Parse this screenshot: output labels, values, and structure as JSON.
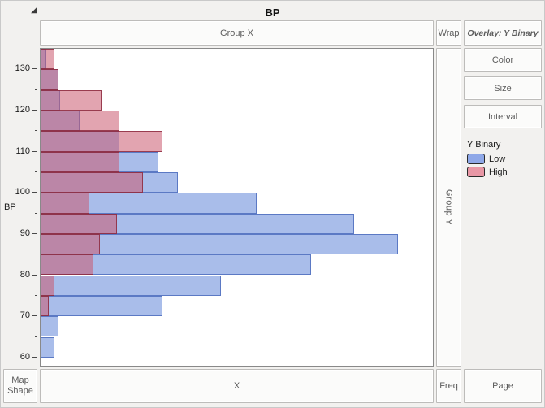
{
  "window": {
    "title_bar": "BP"
  },
  "icons": {
    "disclosure": "◢"
  },
  "zones": {
    "group_x": "Group X",
    "wrap": "Wrap",
    "overlay": "Overlay: Y Binary",
    "group_y": "Group Y",
    "color": "Color",
    "size": "Size",
    "interval": "Interval",
    "map_shape": "Map Shape",
    "x": "X",
    "freq": "Freq",
    "page": "Page"
  },
  "legend": {
    "title": "Y Binary",
    "items": [
      {
        "label": "Low",
        "color": "#8fa8e8"
      },
      {
        "label": "High",
        "color": "#e897a5"
      }
    ]
  },
  "chart_data": {
    "type": "bar",
    "subtype": "histogram",
    "orientation": "horizontal",
    "title": "BP",
    "ylabel": "BP",
    "xlabel": "X",
    "ylim": [
      58,
      135
    ],
    "y_ticks": [
      60,
      70,
      80,
      90,
      100,
      110,
      120,
      130
    ],
    "minor_tick_step": 5,
    "bin_width": 5,
    "bins": [
      60,
      65,
      70,
      75,
      80,
      85,
      90,
      95,
      100,
      105,
      110,
      115,
      120,
      125,
      130
    ],
    "value_unit": "percent-of-x-axis-width (x axis unlabeled in source)",
    "legend_position": "right",
    "grid": false,
    "series": [
      {
        "name": "Low",
        "fill": "#a9bdea",
        "stroke": "#5b79c4",
        "values": [
          3.5,
          4.5,
          31,
          46,
          69,
          91,
          80,
          55,
          35,
          30,
          20,
          10,
          5,
          4.5,
          1.5
        ]
      },
      {
        "name": "High",
        "fill": "rgba(202,90,112,0.55)",
        "stroke": "rgba(140,42,62,0.85)",
        "values": [
          0,
          0,
          2,
          3.5,
          13.5,
          15,
          19.5,
          12.5,
          26,
          20,
          31,
          20,
          15.5,
          4.5,
          3.5
        ]
      }
    ]
  }
}
